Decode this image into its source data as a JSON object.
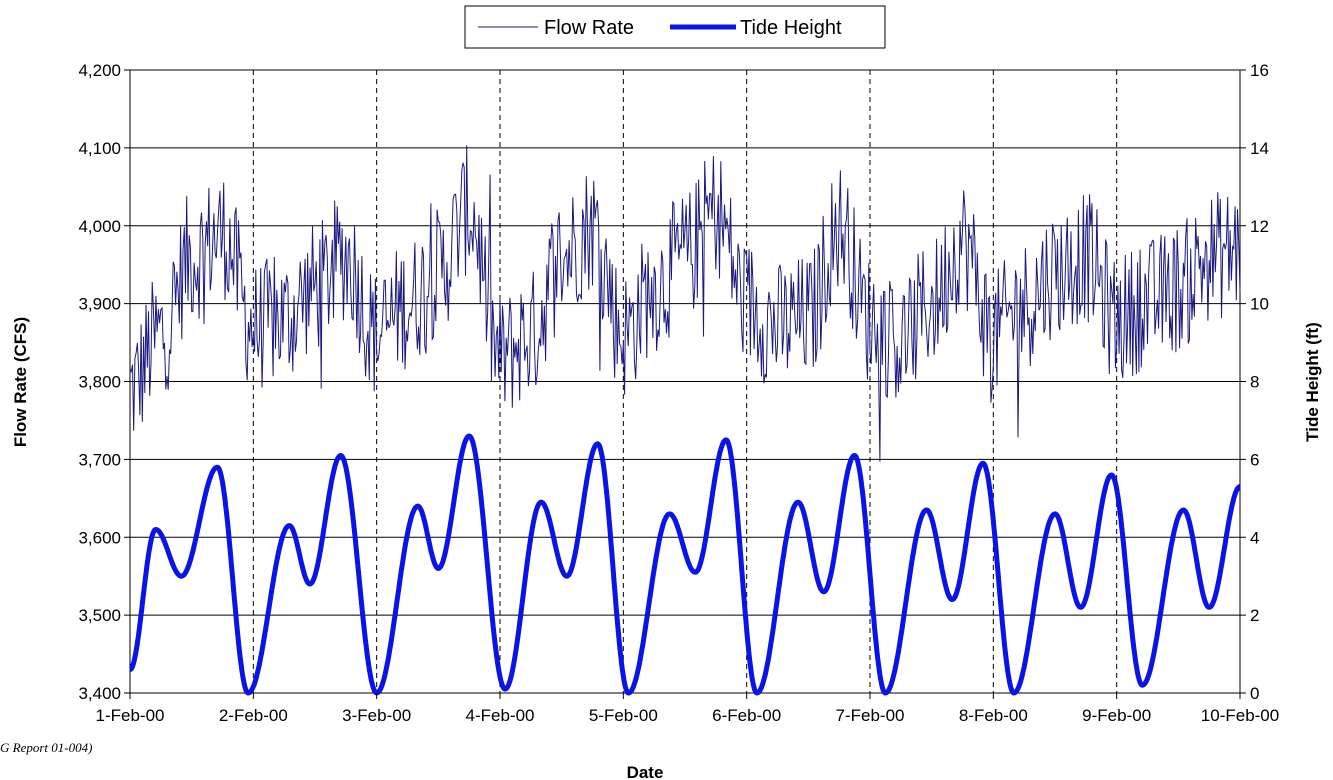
{
  "footnote": "G Report 01-004)",
  "chart_data": {
    "type": "line",
    "xlabel": "Date",
    "ylabel_left": "Flow Rate (CFS)",
    "ylabel_right": "Tide Height (ft)",
    "x_tick_labels": [
      "1-Feb-00",
      "2-Feb-00",
      "3-Feb-00",
      "4-Feb-00",
      "5-Feb-00",
      "6-Feb-00",
      "7-Feb-00",
      "8-Feb-00",
      "9-Feb-00",
      "10-Feb-00"
    ],
    "x_start": "1-Feb-00",
    "x_end": "10-Feb-00",
    "y_left": {
      "min": 3400,
      "max": 4200,
      "step": 100,
      "tick_labels": [
        "3,400",
        "3,500",
        "3,600",
        "3,700",
        "3,800",
        "3,900",
        "4,000",
        "4,100",
        "4,200"
      ]
    },
    "y_right": {
      "min": 0,
      "max": 16,
      "step": 2,
      "tick_labels": [
        "0",
        "2",
        "4",
        "6",
        "8",
        "10",
        "12",
        "14",
        "16"
      ]
    },
    "grid": {
      "horizontal": "solid",
      "vertical": "dashed"
    },
    "legend": {
      "position": "top-center",
      "entries": [
        "Flow Rate",
        "Tide Height"
      ]
    },
    "colors": {
      "flow": "#1a1a80",
      "tide": "#0a14e6"
    },
    "series": [
      {
        "name": "Flow Rate",
        "axis": "left",
        "style": "thin",
        "x": [
          "1-Feb-00 00:00",
          "1-Feb-00 06:00",
          "1-Feb-00 12:00",
          "1-Feb-00 18:00",
          "2-Feb-00 00:00",
          "2-Feb-00 06:00",
          "2-Feb-00 12:00",
          "2-Feb-00 18:00",
          "3-Feb-00 00:00",
          "3-Feb-00 06:00",
          "3-Feb-00 12:00",
          "3-Feb-00 18:00",
          "4-Feb-00 00:00",
          "4-Feb-00 06:00",
          "4-Feb-00 12:00",
          "4-Feb-00 18:00",
          "5-Feb-00 00:00",
          "5-Feb-00 06:00",
          "5-Feb-00 12:00",
          "5-Feb-00 18:00",
          "6-Feb-00 00:00",
          "6-Feb-00 06:00",
          "6-Feb-00 12:00",
          "6-Feb-00 18:00",
          "7-Feb-00 00:00",
          "7-Feb-00 06:00",
          "7-Feb-00 12:00",
          "7-Feb-00 18:00",
          "8-Feb-00 00:00",
          "8-Feb-00 06:00",
          "8-Feb-00 12:00",
          "8-Feb-00 18:00",
          "9-Feb-00 00:00",
          "9-Feb-00 06:00",
          "9-Feb-00 12:00",
          "9-Feb-00 18:00",
          "10-Feb-00 00:00"
        ],
        "y": [
          3790,
          3860,
          3960,
          3990,
          3870,
          3880,
          3920,
          3960,
          3860,
          3900,
          3940,
          4020,
          3830,
          3860,
          3960,
          4000,
          3860,
          3920,
          3960,
          4020,
          3900,
          3870,
          3880,
          4000,
          3880,
          3850,
          3900,
          3980,
          3860,
          3900,
          3940,
          3960,
          3880,
          3900,
          3920,
          3960,
          3970
        ]
      },
      {
        "name": "Tide Height",
        "axis": "right",
        "style": "thick",
        "x": [
          "1-Feb-00 00:00",
          "1-Feb-00 05:00",
          "1-Feb-00 10:00",
          "1-Feb-00 17:00",
          "1-Feb-00 23:00",
          "2-Feb-00 07:00",
          "2-Feb-00 11:00",
          "2-Feb-00 17:00",
          "3-Feb-00 00:00",
          "3-Feb-00 08:00",
          "3-Feb-00 12:00",
          "3-Feb-00 18:00",
          "4-Feb-00 01:00",
          "4-Feb-00 08:00",
          "4-Feb-00 13:00",
          "4-Feb-00 19:00",
          "5-Feb-00 01:00",
          "5-Feb-00 09:00",
          "5-Feb-00 14:00",
          "5-Feb-00 20:00",
          "6-Feb-00 02:00",
          "6-Feb-00 10:00",
          "6-Feb-00 15:00",
          "6-Feb-00 21:00",
          "7-Feb-00 03:00",
          "7-Feb-00 11:00",
          "7-Feb-00 16:00",
          "7-Feb-00 22:00",
          "8-Feb-00 04:00",
          "8-Feb-00 12:00",
          "8-Feb-00 17:00",
          "8-Feb-00 23:00",
          "9-Feb-00 05:00",
          "9-Feb-00 13:00",
          "9-Feb-00 18:00",
          "10-Feb-00 00:00"
        ],
        "y": [
          0.6,
          4.2,
          3.0,
          5.8,
          0.0,
          4.3,
          2.8,
          6.1,
          0.0,
          4.8,
          3.2,
          6.6,
          0.1,
          4.9,
          3.0,
          6.4,
          0.0,
          4.6,
          3.1,
          6.5,
          0.0,
          4.9,
          2.6,
          6.1,
          0.0,
          4.7,
          2.4,
          5.9,
          0.0,
          4.6,
          2.2,
          5.6,
          0.2,
          4.7,
          2.2,
          5.3
        ]
      }
    ]
  }
}
